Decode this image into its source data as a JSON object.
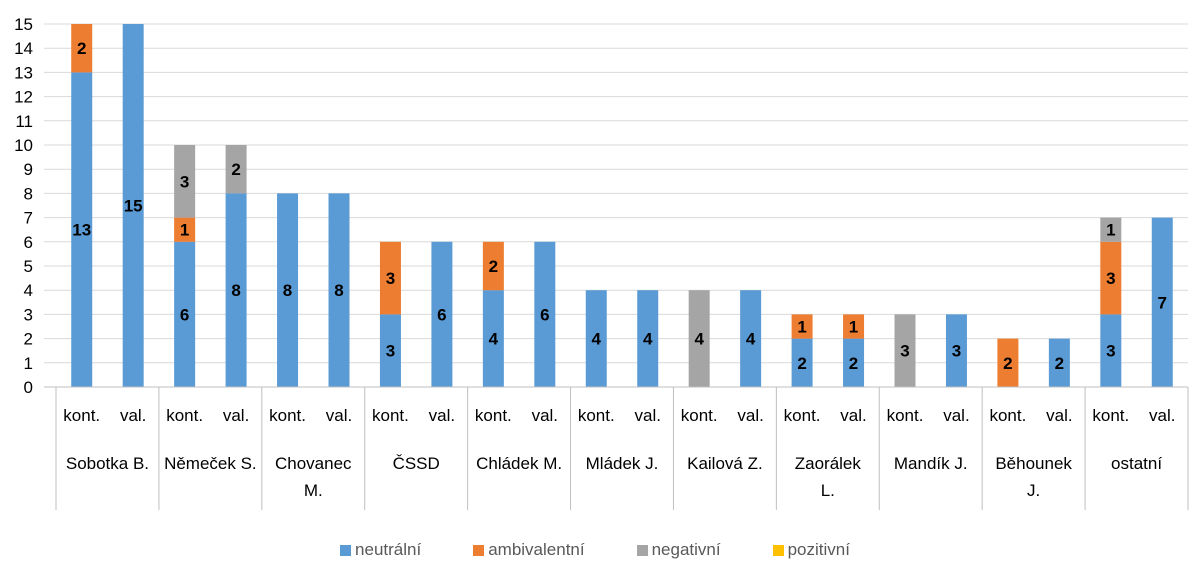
{
  "chart_data": {
    "type": "bar",
    "stacked": true,
    "title": "",
    "xlabel": "",
    "ylabel": "",
    "ylim": [
      0,
      15
    ],
    "yticks": [
      "0",
      "1",
      "2",
      "3",
      "4",
      "5",
      "6",
      "7",
      "8",
      "9",
      "10",
      "11",
      "12",
      "13",
      "14",
      "15"
    ],
    "grid": true,
    "legend_position": "bottom",
    "groups": [
      {
        "label": "Sobotka B."
      },
      {
        "label": "Němeček S."
      },
      {
        "label": "Chovanec M."
      },
      {
        "label": "ČSSD"
      },
      {
        "label": "Chládek M."
      },
      {
        "label": "Mládek J."
      },
      {
        "label": "Kailová Z."
      },
      {
        "label": "Zaorálek L."
      },
      {
        "label": "Mandík J."
      },
      {
        "label": "Běhounek J."
      },
      {
        "label": "ostatní"
      }
    ],
    "subcategories": [
      "kont.",
      "val."
    ],
    "series": [
      {
        "name": "neutrální",
        "color": "#5B9BD5",
        "values": [
          13,
          15,
          6,
          8,
          8,
          8,
          3,
          6,
          4,
          6,
          4,
          4,
          0,
          4,
          2,
          2,
          0,
          3,
          0,
          2,
          3,
          7
        ]
      },
      {
        "name": "ambivalentní",
        "color": "#ED7D31",
        "values": [
          2,
          0,
          1,
          0,
          0,
          0,
          3,
          0,
          2,
          0,
          0,
          0,
          0,
          0,
          1,
          1,
          0,
          0,
          2,
          0,
          3,
          0
        ]
      },
      {
        "name": "negativní",
        "color": "#A5A5A5",
        "values": [
          0,
          0,
          3,
          2,
          0,
          0,
          0,
          0,
          0,
          0,
          0,
          0,
          4,
          0,
          0,
          0,
          3,
          0,
          0,
          0,
          1,
          0
        ]
      },
      {
        "name": "pozitivní",
        "color": "#FFC000",
        "values": [
          0,
          0,
          0,
          0,
          0,
          0,
          0,
          0,
          0,
          0,
          0,
          0,
          0,
          0,
          0,
          0,
          0,
          0,
          0,
          0,
          0,
          0
        ]
      }
    ]
  }
}
